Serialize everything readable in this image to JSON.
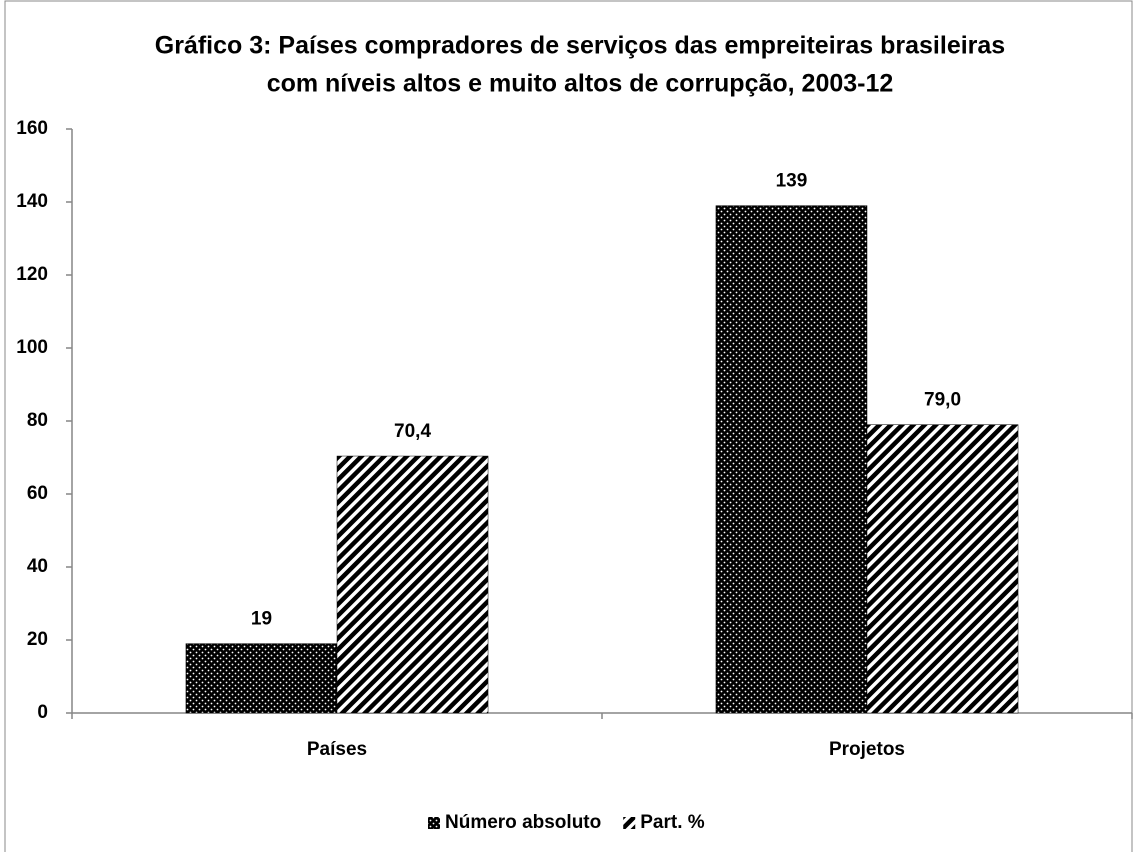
{
  "chart_data": {
    "type": "bar",
    "title": [
      "Gráfico 3: Países compradores de serviços das empreiteiras brasileiras",
      "com níveis altos e muito altos de corrupção, 2003-12"
    ],
    "categories": [
      "Países",
      "Projetos"
    ],
    "series": [
      {
        "name": "Número absoluto",
        "color": "#000000",
        "pattern": "dots",
        "values": [
          19,
          139
        ]
      },
      {
        "name": "Part. %",
        "color": "#000000",
        "pattern": "diagonal",
        "values": [
          70.4,
          79.0
        ],
        "value_labels": [
          "70,4",
          "79,0"
        ]
      }
    ],
    "ylim": [
      0,
      160
    ],
    "yticks": [
      0,
      20,
      40,
      60,
      80,
      100,
      120,
      140,
      160
    ],
    "legend": "bottom"
  }
}
